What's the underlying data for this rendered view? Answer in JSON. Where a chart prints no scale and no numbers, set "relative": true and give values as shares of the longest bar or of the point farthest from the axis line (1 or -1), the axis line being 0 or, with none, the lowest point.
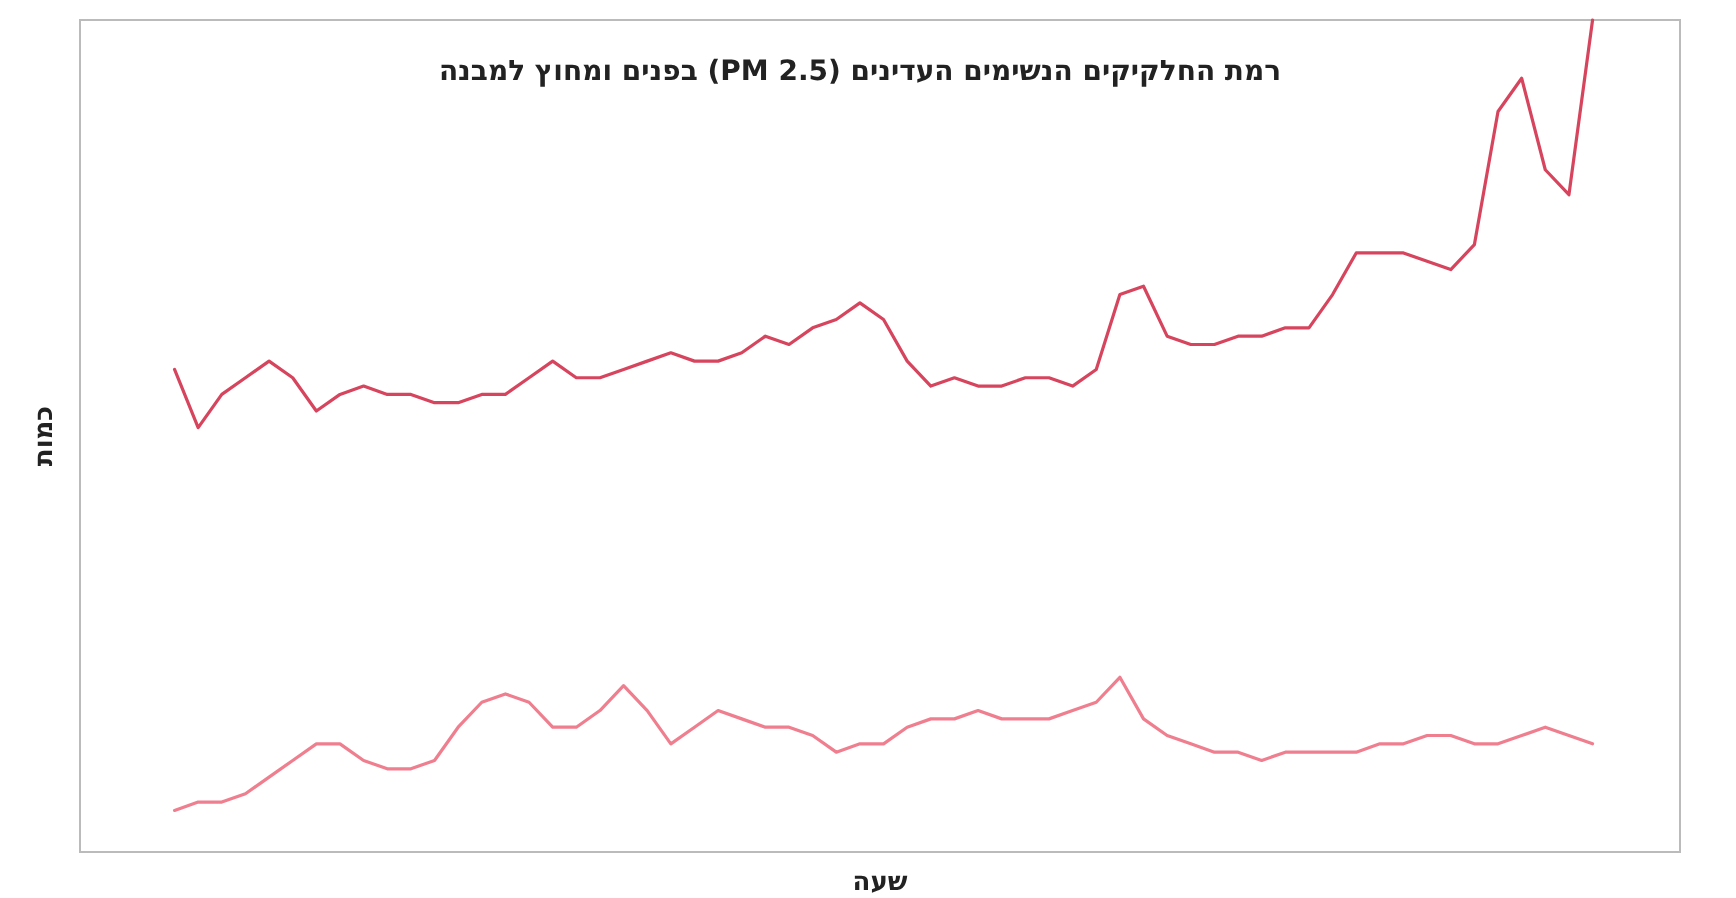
{
  "chart_data": {
    "type": "line",
    "title": "רמת החלקיקים הנשימים העדינים (PM 2.5) בפנים ומחוץ למבנה",
    "xlabel": "שעה",
    "ylabel": "כמות",
    "relative": true,
    "categories": [
      null,
      null,
      null,
      null,
      null,
      null,
      null,
      null,
      null,
      null,
      null,
      null,
      null,
      null,
      null,
      null,
      null,
      null,
      null,
      null,
      null,
      null,
      null,
      null,
      null,
      null,
      null,
      null,
      null,
      null,
      null,
      null,
      null,
      null,
      null,
      null,
      null,
      null,
      null,
      null,
      null,
      null,
      null,
      null,
      null,
      null,
      null,
      null,
      null,
      null,
      null,
      null,
      null,
      null,
      null,
      null,
      null,
      null,
      null,
      null,
      null
    ],
    "series": [
      {
        "color": "#d6455d",
        "values": [
          0.58,
          0.51,
          0.55,
          0.57,
          0.59,
          0.57,
          0.53,
          0.55,
          0.56,
          0.55,
          0.55,
          0.54,
          0.54,
          0.55,
          0.55,
          0.57,
          0.59,
          0.57,
          0.57,
          0.58,
          0.59,
          0.6,
          0.59,
          0.59,
          0.6,
          0.62,
          0.61,
          0.63,
          0.64,
          0.66,
          0.64,
          0.59,
          0.56,
          0.57,
          0.56,
          0.56,
          0.57,
          0.57,
          0.56,
          0.58,
          0.67,
          0.68,
          0.62,
          0.61,
          0.61,
          0.62,
          0.62,
          0.63,
          0.63,
          0.67,
          0.72,
          0.72,
          0.72,
          0.71,
          0.7,
          0.73,
          0.89,
          0.93,
          0.82,
          0.79,
          1.0
        ]
      },
      {
        "color": "#ef7f8f",
        "values": [
          0.05,
          0.06,
          0.06,
          0.07,
          0.09,
          0.11,
          0.13,
          0.13,
          0.11,
          0.1,
          0.1,
          0.11,
          0.15,
          0.18,
          0.19,
          0.18,
          0.15,
          0.15,
          0.17,
          0.2,
          0.17,
          0.13,
          0.15,
          0.17,
          0.16,
          0.15,
          0.15,
          0.14,
          0.12,
          0.13,
          0.13,
          0.15,
          0.16,
          0.16,
          0.17,
          0.16,
          0.16,
          0.16,
          0.17,
          0.18,
          0.21,
          0.16,
          0.14,
          0.13,
          0.12,
          0.12,
          0.11,
          0.12,
          0.12,
          0.12,
          0.12,
          0.13,
          0.13,
          0.14,
          0.14,
          0.13,
          0.13,
          0.14,
          0.15,
          0.14,
          0.13
        ]
      }
    ]
  }
}
